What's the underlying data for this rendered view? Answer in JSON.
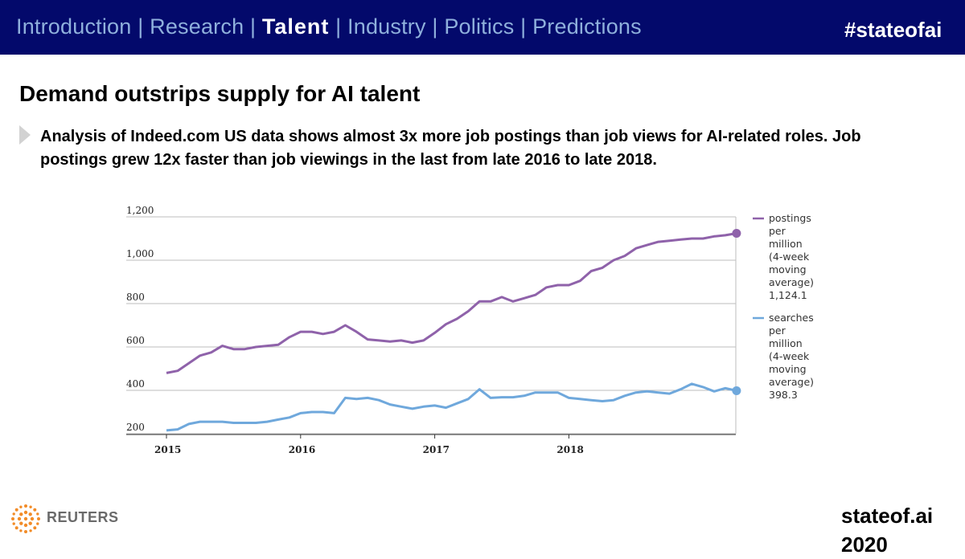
{
  "nav": {
    "items": [
      "Introduction",
      "Research",
      "Talent",
      "Industry",
      "Politics",
      "Predictions"
    ],
    "active": "Talent",
    "hashtag": "#stateofai"
  },
  "slide": {
    "title": "Demand outstrips supply for AI talent",
    "bullet_line1": "Analysis of Indeed.com US data shows almost 3x more job postings than job views for AI-related roles. Job",
    "bullet_line2": "postings grew 12x faster than job viewings in the last from late 2016 to late 2018."
  },
  "footer": {
    "source_logo_text": "REUTERS",
    "site": "stateof.ai 2020"
  },
  "colors": {
    "header_bg": "#03096b",
    "postings": "#8f62aa",
    "searches": "#6fa8dc"
  },
  "chart_data": {
    "type": "line",
    "x_ticks": [
      "2015",
      "2016",
      "2017",
      "2018"
    ],
    "y_ticks": [
      "200",
      "400",
      "600",
      "800",
      "1,000",
      "1,200"
    ],
    "ylim": [
      200,
      1200
    ],
    "grid": "horizontal",
    "legend_position": "right",
    "series": [
      {
        "name": "postings per million (4-week moving average)",
        "legend_lines": [
          "postings",
          "per",
          "million",
          "(4-week",
          "moving",
          "average)",
          "1,124.1"
        ],
        "last_value": "1,124.1",
        "color": "#8f62aa",
        "points": [
          [
            "2015-01",
            480
          ],
          [
            "2015-02",
            490
          ],
          [
            "2015-03",
            525
          ],
          [
            "2015-04",
            560
          ],
          [
            "2015-05",
            575
          ],
          [
            "2015-06",
            605
          ],
          [
            "2015-07",
            590
          ],
          [
            "2015-08",
            590
          ],
          [
            "2015-09",
            600
          ],
          [
            "2015-10",
            605
          ],
          [
            "2015-11",
            610
          ],
          [
            "2015-12",
            645
          ],
          [
            "2016-01",
            670
          ],
          [
            "2016-02",
            670
          ],
          [
            "2016-03",
            660
          ],
          [
            "2016-04",
            670
          ],
          [
            "2016-05",
            700
          ],
          [
            "2016-06",
            670
          ],
          [
            "2016-07",
            635
          ],
          [
            "2016-08",
            630
          ],
          [
            "2016-09",
            625
          ],
          [
            "2016-10",
            630
          ],
          [
            "2016-11",
            620
          ],
          [
            "2016-12",
            630
          ],
          [
            "2017-01",
            665
          ],
          [
            "2017-02",
            705
          ],
          [
            "2017-03",
            730
          ],
          [
            "2017-04",
            765
          ],
          [
            "2017-05",
            810
          ],
          [
            "2017-06",
            810
          ],
          [
            "2017-07",
            830
          ],
          [
            "2017-08",
            810
          ],
          [
            "2017-09",
            825
          ],
          [
            "2017-10",
            840
          ],
          [
            "2017-11",
            875
          ],
          [
            "2017-12",
            885
          ],
          [
            "2018-01",
            885
          ],
          [
            "2018-02",
            905
          ],
          [
            "2018-03",
            950
          ],
          [
            "2018-04",
            965
          ],
          [
            "2018-05",
            1000
          ],
          [
            "2018-06",
            1020
          ],
          [
            "2018-07",
            1055
          ],
          [
            "2018-08",
            1070
          ],
          [
            "2018-09",
            1085
          ],
          [
            "2018-10",
            1090
          ],
          [
            "2018-11",
            1095
          ],
          [
            "2018-12",
            1100
          ],
          [
            "2019-01",
            1100
          ],
          [
            "2019-02",
            1110
          ],
          [
            "2019-03",
            1115
          ],
          [
            "2019-04",
            1124.1
          ]
        ]
      },
      {
        "name": "searches per million (4-week moving average)",
        "legend_lines": [
          "searches",
          "per",
          "million",
          "(4-week",
          "moving",
          "average)",
          "398.3"
        ],
        "last_value": "398.3",
        "color": "#6fa8dc",
        "points": [
          [
            "2015-01",
            215
          ],
          [
            "2015-02",
            220
          ],
          [
            "2015-03",
            245
          ],
          [
            "2015-04",
            255
          ],
          [
            "2015-05",
            255
          ],
          [
            "2015-06",
            255
          ],
          [
            "2015-07",
            250
          ],
          [
            "2015-08",
            250
          ],
          [
            "2015-09",
            250
          ],
          [
            "2015-10",
            255
          ],
          [
            "2015-11",
            265
          ],
          [
            "2015-12",
            275
          ],
          [
            "2016-01",
            295
          ],
          [
            "2016-02",
            300
          ],
          [
            "2016-03",
            300
          ],
          [
            "2016-04",
            295
          ],
          [
            "2016-05",
            365
          ],
          [
            "2016-06",
            360
          ],
          [
            "2016-07",
            365
          ],
          [
            "2016-08",
            355
          ],
          [
            "2016-09",
            335
          ],
          [
            "2016-10",
            325
          ],
          [
            "2016-11",
            315
          ],
          [
            "2016-12",
            325
          ],
          [
            "2017-01",
            330
          ],
          [
            "2017-02",
            320
          ],
          [
            "2017-03",
            340
          ],
          [
            "2017-04",
            360
          ],
          [
            "2017-05",
            405
          ],
          [
            "2017-06",
            365
          ],
          [
            "2017-07",
            368
          ],
          [
            "2017-08",
            368
          ],
          [
            "2017-09",
            375
          ],
          [
            "2017-10",
            390
          ],
          [
            "2017-11",
            390
          ],
          [
            "2017-12",
            390
          ],
          [
            "2018-01",
            365
          ],
          [
            "2018-02",
            360
          ],
          [
            "2018-03",
            355
          ],
          [
            "2018-04",
            350
          ],
          [
            "2018-05",
            355
          ],
          [
            "2018-06",
            375
          ],
          [
            "2018-07",
            390
          ],
          [
            "2018-08",
            395
          ],
          [
            "2018-09",
            390
          ],
          [
            "2018-10",
            385
          ],
          [
            "2018-11",
            405
          ],
          [
            "2018-12",
            430
          ],
          [
            "2019-01",
            415
          ],
          [
            "2019-02",
            395
          ],
          [
            "2019-03",
            410
          ],
          [
            "2019-04",
            398.3
          ]
        ]
      }
    ]
  }
}
